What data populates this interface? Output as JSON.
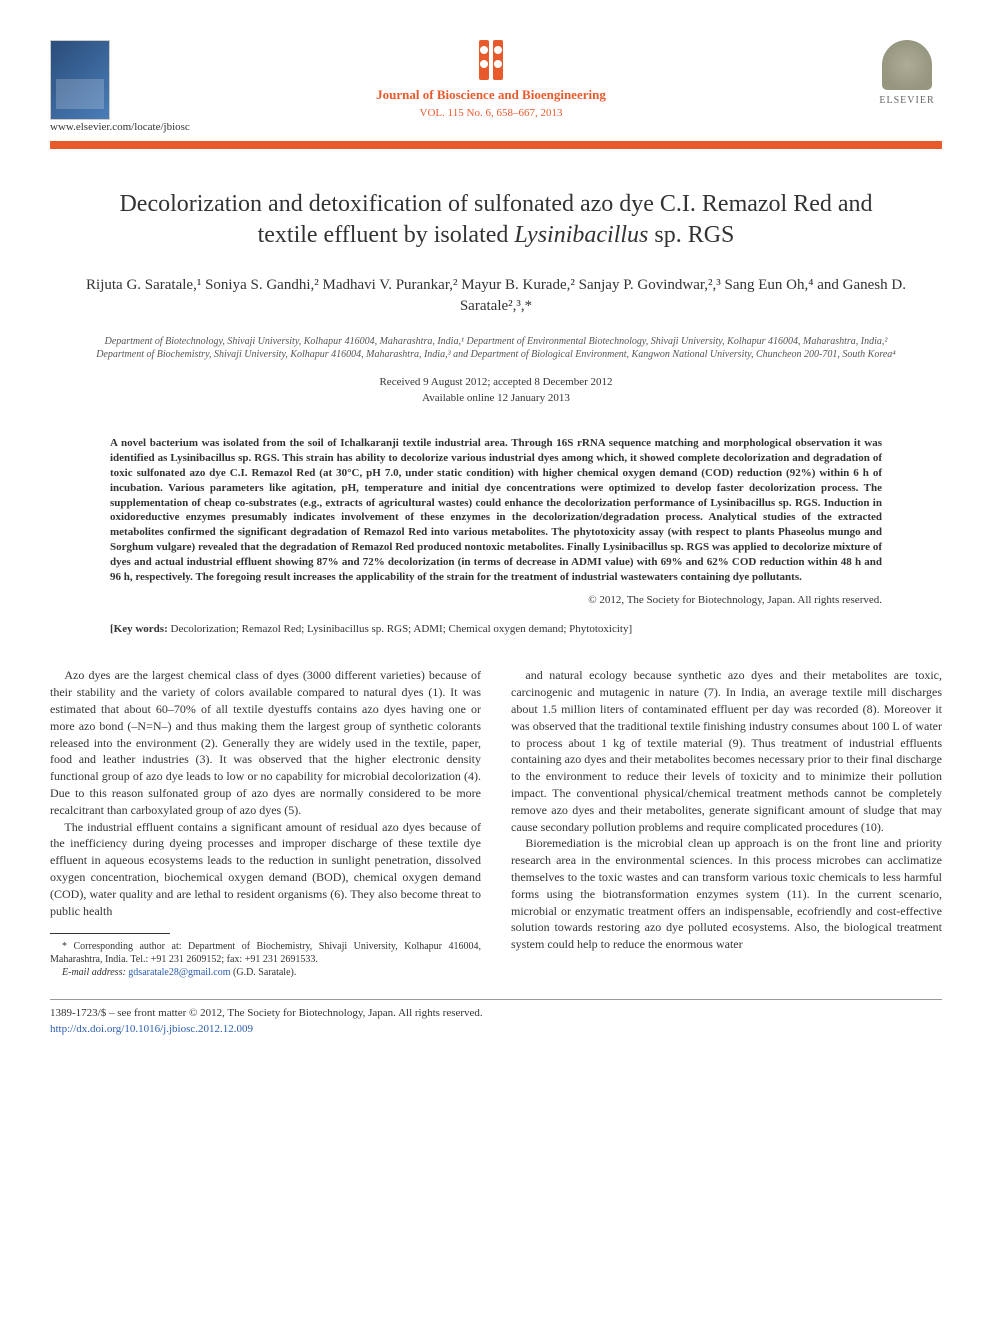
{
  "header": {
    "journal_name": "Journal of Bioscience and Bioengineering",
    "volume_line": "VOL. 115 No. 6, 658–667, 2013",
    "locate_url": "www.elsevier.com/locate/jbiosc",
    "publisher": "ELSEVIER"
  },
  "article": {
    "title_pre": "Decolorization and detoxification of sulfonated azo dye C.I. Remazol Red and textile effluent by isolated ",
    "title_em": "Lysinibacillus",
    "title_post": " sp. RGS",
    "authors_html": "Rijuta G. Saratale,¹ Soniya S. Gandhi,² Madhavi V. Purankar,² Mayur B. Kurade,² Sanjay P. Govindwar,²,³ Sang Eun Oh,⁴ and Ganesh D. Saratale²,³,*",
    "affiliations": "Department of Biotechnology, Shivaji University, Kolhapur 416004, Maharashtra, India,¹ Department of Environmental Biotechnology, Shivaji University, Kolhapur 416004, Maharashtra, India,² Department of Biochemistry, Shivaji University, Kolhapur 416004, Maharashtra, India,³ and Department of Biological Environment, Kangwon National University, Chuncheon 200-701, South Korea⁴",
    "received": "Received 9 August 2012; accepted 8 December 2012",
    "online": "Available online 12 January 2013"
  },
  "abstract": {
    "text": "A novel bacterium was isolated from the soil of Ichalkaranji textile industrial area. Through 16S rRNA sequence matching and morphological observation it was identified as Lysinibacillus sp. RGS. This strain has ability to decolorize various industrial dyes among which, it showed complete decolorization and degradation of toxic sulfonated azo dye C.I. Remazol Red (at 30°C, pH 7.0, under static condition) with higher chemical oxygen demand (COD) reduction (92%) within 6 h of incubation. Various parameters like agitation, pH, temperature and initial dye concentrations were optimized to develop faster decolorization process. The supplementation of cheap co-substrates (e.g., extracts of agricultural wastes) could enhance the decolorization performance of Lysinibacillus sp. RGS. Induction in oxidoreductive enzymes presumably indicates involvement of these enzymes in the decolorization/degradation process. Analytical studies of the extracted metabolites confirmed the significant degradation of Remazol Red into various metabolites. The phytotoxicity assay (with respect to plants Phaseolus mungo and Sorghum vulgare) revealed that the degradation of Remazol Red produced nontoxic metabolites. Finally Lysinibacillus sp. RGS was applied to decolorize mixture of dyes and actual industrial effluent showing 87% and 72% decolorization (in terms of decrease in ADMI value) with 69% and 62% COD reduction within 48 h and 96 h, respectively. The foregoing result increases the applicability of the strain for the treatment of industrial wastewaters containing dye pollutants.",
    "copyright": "© 2012, The Society for Biotechnology, Japan. All rights reserved."
  },
  "keywords": {
    "label": "[Key words:",
    "text": " Decolorization; Remazol Red; Lysinibacillus sp. RGS; ADMI; Chemical oxygen demand; Phytotoxicity]"
  },
  "body": {
    "col1_p1": "Azo dyes are the largest chemical class of dyes (3000 different varieties) because of their stability and the variety of colors available compared to natural dyes (1). It was estimated that about 60–70% of all textile dyestuffs contains azo dyes having one or more azo bond (–N=N–) and thus making them the largest group of synthetic colorants released into the environment (2). Generally they are widely used in the textile, paper, food and leather industries (3). It was observed that the higher electronic density functional group of azo dye leads to low or no capability for microbial decolorization (4). Due to this reason sulfonated group of azo dyes are normally considered to be more recalcitrant than carboxylated group of azo dyes (5).",
    "col1_p2": "The industrial effluent contains a significant amount of residual azo dyes because of the inefficiency during dyeing processes and improper discharge of these textile dye effluent in aqueous ecosystems leads to the reduction in sunlight penetration, dissolved oxygen concentration, biochemical oxygen demand (BOD), chemical oxygen demand (COD), water quality and are lethal to resident organisms (6). They also become threat to public health",
    "col2_p1": "and natural ecology because synthetic azo dyes and their metabolites are toxic, carcinogenic and mutagenic in nature (7). In India, an average textile mill discharges about 1.5 million liters of contaminated effluent per day was recorded (8). Moreover it was observed that the traditional textile finishing industry consumes about 100 L of water to process about 1 kg of textile material (9). Thus treatment of industrial effluents containing azo dyes and their metabolites becomes necessary prior to their final discharge to the environment to reduce their levels of toxicity and to minimize their pollution impact. The conventional physical/chemical treatment methods cannot be completely remove azo dyes and their metabolites, generate significant amount of sludge that may cause secondary pollution problems and require complicated procedures (10).",
    "col2_p2": "Bioremediation is the microbial clean up approach is on the front line and priority research area in the environmental sciences. In this process microbes can acclimatize themselves to the toxic wastes and can transform various toxic chemicals to less harmful forms using the biotransformation enzymes system (11). In the current scenario, microbial or enzymatic treatment offers an indispensable, ecofriendly and cost-effective solution towards restoring azo dye polluted ecosystems. Also, the biological treatment system could help to reduce the enormous water"
  },
  "footnote": {
    "corresponding": "* Corresponding author at: Department of Biochemistry, Shivaji University, Kolhapur 416004, Maharashtra, India. Tel.: +91 231 2609152; fax: +91 231 2691533.",
    "email_label": "E-mail address:",
    "email": "gdsaratale28@gmail.com",
    "email_who": "(G.D. Saratale)."
  },
  "footer": {
    "front_matter": "1389-1723/$ – see front matter © 2012, The Society for Biotechnology, Japan. All rights reserved.",
    "doi": "http://dx.doi.org/10.1016/j.jbiosc.2012.12.009"
  },
  "colors": {
    "accent": "#e85a2c",
    "link": "#2a5db0",
    "text": "#333333",
    "bg": "#ffffff"
  }
}
